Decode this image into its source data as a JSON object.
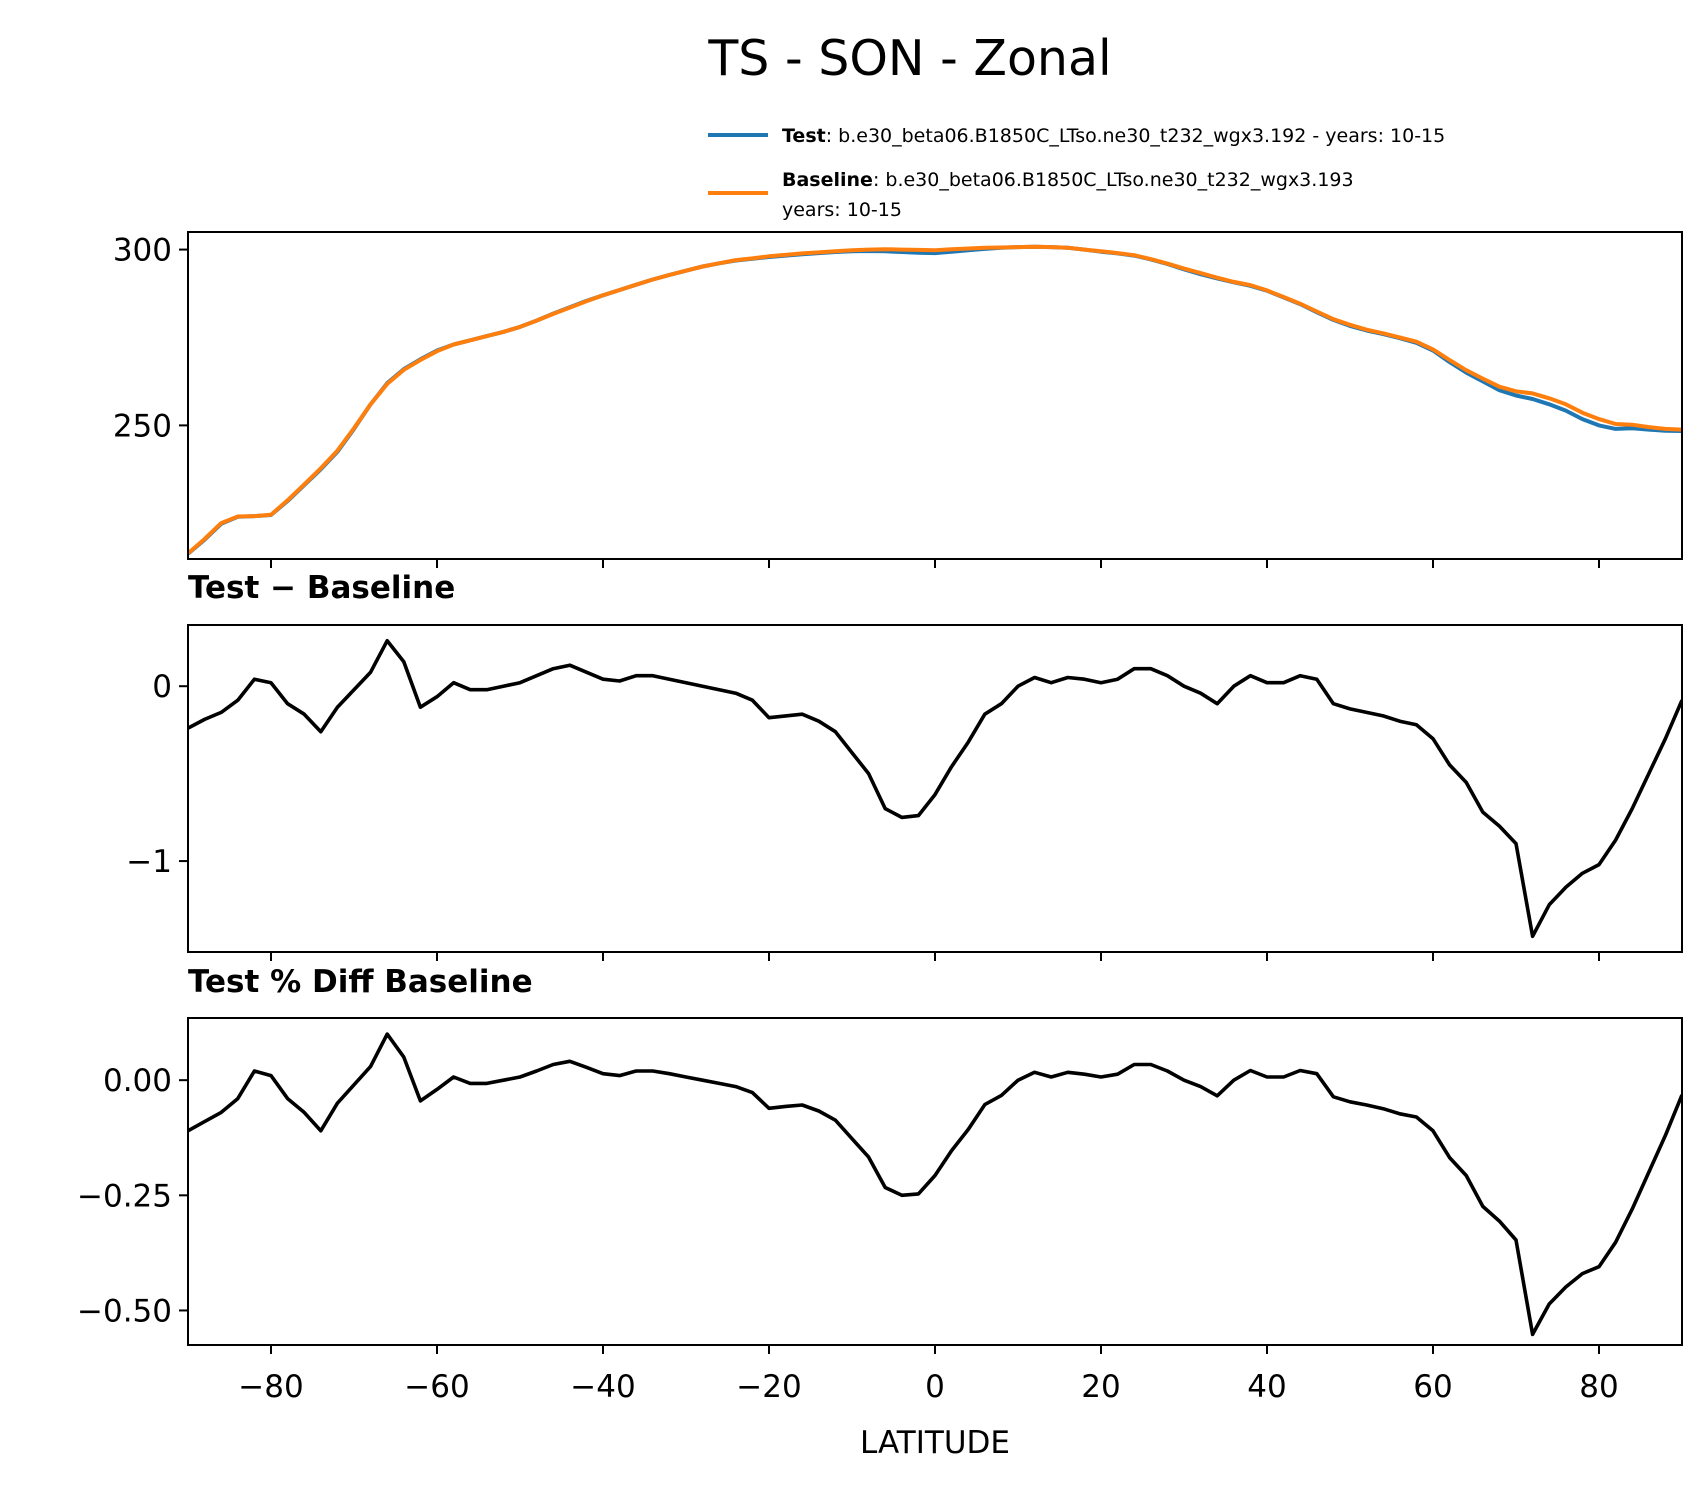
{
  "title": "TS - SON - Zonal",
  "colors": {
    "test": "#1f77b4",
    "baseline": "#ff7f0e",
    "diff": "#000000"
  },
  "legend": {
    "test": {
      "label": "Test",
      "text": ": b.e30_beta06.B1850C_LTso.ne30_t232_wgx3.192 - years: 10-15"
    },
    "baseline": {
      "label": "Baseline",
      "text": ": b.e30_beta06.B1850C_LTso.ne30_t232_wgx3.193",
      "text2": "years: 10-15"
    }
  },
  "chart_data": [
    {
      "type": "line",
      "panel": "top",
      "title": "",
      "xlabel": "",
      "ylabel": "",
      "xlim": [
        -90,
        90
      ],
      "ylim": [
        212,
        305
      ],
      "yticks": [
        250,
        300
      ],
      "ytick_labels": [
        "250",
        "300"
      ],
      "x": [
        -90,
        -88,
        -86,
        -84,
        -82,
        -80,
        -78,
        -76,
        -74,
        -72,
        -70,
        -68,
        -66,
        -64,
        -62,
        -60,
        -58,
        -56,
        -54,
        -52,
        -50,
        -48,
        -46,
        -44,
        -42,
        -40,
        -38,
        -36,
        -34,
        -32,
        -30,
        -28,
        -26,
        -24,
        -22,
        -20,
        -18,
        -16,
        -14,
        -12,
        -10,
        -8,
        -6,
        -4,
        -2,
        0,
        2,
        4,
        6,
        8,
        10,
        12,
        14,
        16,
        18,
        20,
        22,
        24,
        26,
        28,
        30,
        32,
        34,
        36,
        38,
        40,
        42,
        44,
        46,
        48,
        50,
        52,
        54,
        56,
        58,
        60,
        62,
        64,
        66,
        68,
        70,
        72,
        74,
        76,
        78,
        80,
        82,
        84,
        86,
        88,
        90
      ],
      "series": [
        {
          "name": "Test",
          "color": "#1f77b4",
          "values": [
            213.5,
            217.5,
            222.0,
            224.0,
            224.2,
            224.5,
            228.5,
            233.0,
            237.5,
            242.5,
            249.0,
            256.0,
            262.0,
            266.0,
            268.8,
            271.3,
            273.0,
            274.2,
            275.4,
            276.6,
            278.0,
            279.8,
            281.8,
            283.6,
            285.4,
            287.0,
            288.5,
            290.0,
            291.5,
            292.8,
            294.0,
            295.2,
            296.1,
            296.9,
            297.4,
            297.9,
            298.3,
            298.7,
            299.0,
            299.3,
            299.5,
            299.6,
            299.5,
            299.3,
            299.1,
            299.0,
            299.4,
            299.8,
            300.2,
            300.5,
            300.7,
            300.8,
            300.7,
            300.5,
            300.0,
            299.4,
            298.9,
            298.3,
            297.2,
            295.9,
            294.4,
            293.0,
            291.8,
            290.7,
            289.7,
            288.3,
            286.4,
            284.5,
            282.2,
            280.0,
            278.3,
            277.0,
            276.0,
            274.8,
            273.5,
            271.3,
            268.0,
            265.0,
            262.5,
            260.0,
            258.5,
            257.5,
            256.0,
            254.2,
            251.8,
            250.0,
            249.0,
            249.2,
            248.8,
            248.5,
            248.4
          ]
        },
        {
          "name": "Baseline",
          "color": "#ff7f0e",
          "values": [
            213.6,
            217.7,
            222.2,
            224.1,
            224.2,
            224.6,
            228.7,
            233.2,
            237.8,
            242.8,
            249.2,
            256.0,
            261.8,
            265.8,
            268.6,
            271.1,
            273.0,
            274.2,
            275.4,
            276.6,
            278.0,
            279.8,
            281.7,
            283.5,
            285.3,
            287.0,
            288.5,
            290.0,
            291.5,
            292.8,
            294.0,
            295.2,
            296.1,
            297.0,
            297.5,
            298.1,
            298.5,
            298.9,
            299.2,
            299.5,
            299.8,
            300.0,
            300.1,
            300.0,
            299.9,
            299.8,
            300.1,
            300.3,
            300.5,
            300.6,
            300.7,
            300.8,
            300.7,
            300.5,
            300.0,
            299.5,
            299.0,
            298.4,
            297.3,
            296.0,
            294.6,
            293.3,
            292.0,
            290.8,
            289.9,
            288.4,
            286.5,
            284.6,
            282.4,
            280.2,
            278.6,
            277.2,
            276.2,
            275.0,
            273.8,
            271.6,
            268.6,
            265.7,
            263.3,
            261.0,
            259.7,
            259.1,
            257.7,
            256.0,
            253.6,
            251.8,
            250.4,
            250.2,
            249.5,
            249.0,
            248.8
          ]
        }
      ]
    },
    {
      "type": "line",
      "panel": "middle",
      "title": "Test − Baseline",
      "xlabel": "",
      "ylabel": "",
      "xlim": [
        -90,
        90
      ],
      "ylim": [
        -1.52,
        0.35
      ],
      "yticks": [
        -1,
        0
      ],
      "ytick_labels": [
        "−1",
        "0"
      ],
      "x": [
        -90,
        -88,
        -86,
        -84,
        -82,
        -80,
        -78,
        -76,
        -74,
        -72,
        -70,
        -68,
        -66,
        -64,
        -62,
        -60,
        -58,
        -56,
        -54,
        -52,
        -50,
        -48,
        -46,
        -44,
        -42,
        -40,
        -38,
        -36,
        -34,
        -32,
        -30,
        -28,
        -26,
        -24,
        -22,
        -20,
        -18,
        -16,
        -14,
        -12,
        -10,
        -8,
        -6,
        -4,
        -2,
        0,
        2,
        4,
        6,
        8,
        10,
        12,
        14,
        16,
        18,
        20,
        22,
        24,
        26,
        28,
        30,
        32,
        34,
        36,
        38,
        40,
        42,
        44,
        46,
        48,
        50,
        52,
        54,
        56,
        58,
        60,
        62,
        64,
        66,
        68,
        70,
        72,
        74,
        76,
        78,
        80,
        82,
        84,
        86,
        88,
        90
      ],
      "series": [
        {
          "name": "Test − Baseline",
          "color": "#000000",
          "values": [
            -0.24,
            -0.19,
            -0.15,
            -0.08,
            0.04,
            0.02,
            -0.1,
            -0.16,
            -0.26,
            -0.12,
            -0.02,
            0.08,
            0.26,
            0.14,
            -0.12,
            -0.06,
            0.02,
            -0.02,
            -0.02,
            0.0,
            0.02,
            0.06,
            0.1,
            0.12,
            0.08,
            0.04,
            0.03,
            0.06,
            0.06,
            0.04,
            0.02,
            0.0,
            -0.02,
            -0.04,
            -0.08,
            -0.18,
            -0.17,
            -0.16,
            -0.2,
            -0.26,
            -0.38,
            -0.5,
            -0.7,
            -0.75,
            -0.74,
            -0.62,
            -0.46,
            -0.32,
            -0.16,
            -0.1,
            0.0,
            0.05,
            0.02,
            0.05,
            0.04,
            0.02,
            0.04,
            0.1,
            0.1,
            0.06,
            0.0,
            -0.04,
            -0.1,
            0.0,
            0.06,
            0.02,
            0.02,
            0.06,
            0.04,
            -0.1,
            -0.13,
            -0.15,
            -0.17,
            -0.2,
            -0.22,
            -0.3,
            -0.45,
            -0.55,
            -0.72,
            -0.8,
            -0.9,
            -1.43,
            -1.25,
            -1.15,
            -1.07,
            -1.02,
            -0.88,
            -0.7,
            -0.5,
            -0.3,
            -0.08
          ]
        }
      ]
    },
    {
      "type": "line",
      "panel": "bottom",
      "title": "Test % Diff Baseline",
      "xlabel": "LATITUDE",
      "ylabel": "",
      "xlim": [
        -90,
        90
      ],
      "ylim": [
        -0.575,
        0.135
      ],
      "yticks": [
        -0.5,
        -0.25,
        0.0
      ],
      "ytick_labels": [
        "−0.50",
        "−0.25",
        "0.00"
      ],
      "xticks": [
        -80,
        -60,
        -40,
        -20,
        0,
        20,
        40,
        60,
        80
      ],
      "xtick_labels": [
        "−80",
        "−60",
        "−40",
        "−20",
        "0",
        "20",
        "40",
        "60",
        "80"
      ],
      "x": [
        -90,
        -88,
        -86,
        -84,
        -82,
        -80,
        -78,
        -76,
        -74,
        -72,
        -70,
        -68,
        -66,
        -64,
        -62,
        -60,
        -58,
        -56,
        -54,
        -52,
        -50,
        -48,
        -46,
        -44,
        -42,
        -40,
        -38,
        -36,
        -34,
        -32,
        -30,
        -28,
        -26,
        -24,
        -22,
        -20,
        -18,
        -16,
        -14,
        -12,
        -10,
        -8,
        -6,
        -4,
        -2,
        0,
        2,
        4,
        6,
        8,
        10,
        12,
        14,
        16,
        18,
        20,
        22,
        24,
        26,
        28,
        30,
        32,
        34,
        36,
        38,
        40,
        42,
        44,
        46,
        48,
        50,
        52,
        54,
        56,
        58,
        60,
        62,
        64,
        66,
        68,
        70,
        72,
        74,
        76,
        78,
        80,
        82,
        84,
        86,
        88,
        90
      ],
      "series": [
        {
          "name": "Test % Diff Baseline",
          "color": "#000000",
          "values": [
            -0.11,
            -0.09,
            -0.07,
            -0.04,
            0.02,
            0.01,
            -0.04,
            -0.07,
            -0.11,
            -0.05,
            -0.01,
            0.03,
            0.1,
            0.05,
            -0.045,
            -0.02,
            0.007,
            -0.007,
            -0.007,
            0.0,
            0.007,
            0.02,
            0.034,
            0.041,
            0.028,
            0.014,
            0.01,
            0.02,
            0.02,
            0.014,
            0.007,
            0.0,
            -0.007,
            -0.014,
            -0.027,
            -0.061,
            -0.057,
            -0.054,
            -0.067,
            -0.087,
            -0.127,
            -0.167,
            -0.233,
            -0.25,
            -0.247,
            -0.207,
            -0.153,
            -0.107,
            -0.053,
            -0.033,
            0.0,
            0.017,
            0.007,
            0.017,
            0.013,
            0.007,
            0.013,
            0.034,
            0.034,
            0.02,
            0.0,
            -0.014,
            -0.034,
            0.0,
            0.021,
            0.007,
            0.007,
            0.021,
            0.014,
            -0.036,
            -0.047,
            -0.054,
            -0.062,
            -0.073,
            -0.08,
            -0.11,
            -0.168,
            -0.207,
            -0.274,
            -0.306,
            -0.347,
            -0.552,
            -0.486,
            -0.449,
            -0.42,
            -0.405,
            -0.352,
            -0.28,
            -0.2,
            -0.12,
            -0.032
          ]
        }
      ]
    }
  ]
}
